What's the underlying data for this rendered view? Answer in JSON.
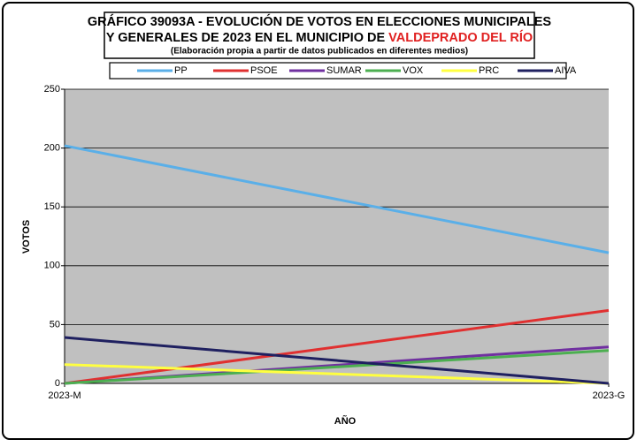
{
  "chart_data": {
    "type": "line",
    "title_line1": "GRÁFICO 39093A - EVOLUCIÓN DE VOTOS EN ELECCIONES MUNICIPALES",
    "title_line2": "Y GENERALES DE 2023 EN EL MUNICIPIO DE ",
    "title_highlight": "VALDEPRADO DEL RÍO",
    "subtitle": "(Elaboración propia a partir de datos publicados en diferentes medios)",
    "xlabel": "AÑO",
    "ylabel": "VOTOS",
    "categories": [
      "2023-M",
      "2023-G"
    ],
    "series": [
      {
        "name": "PP",
        "color": "#5aafe8",
        "values": [
          202,
          111
        ]
      },
      {
        "name": "PSOE",
        "color": "#e03030",
        "values": [
          0,
          62
        ]
      },
      {
        "name": "SUMAR",
        "color": "#7030a0",
        "values": [
          0,
          31
        ]
      },
      {
        "name": "VOX",
        "color": "#4caf50",
        "values": [
          0,
          28
        ]
      },
      {
        "name": "PRC",
        "color": "#ffff40",
        "values": [
          16,
          0
        ]
      },
      {
        "name": "AIVA",
        "color": "#1f2060",
        "values": [
          39,
          0
        ]
      }
    ],
    "ylim": [
      0,
      250
    ],
    "yticks": [
      0,
      50,
      100,
      150,
      200,
      250
    ],
    "grid": true
  }
}
